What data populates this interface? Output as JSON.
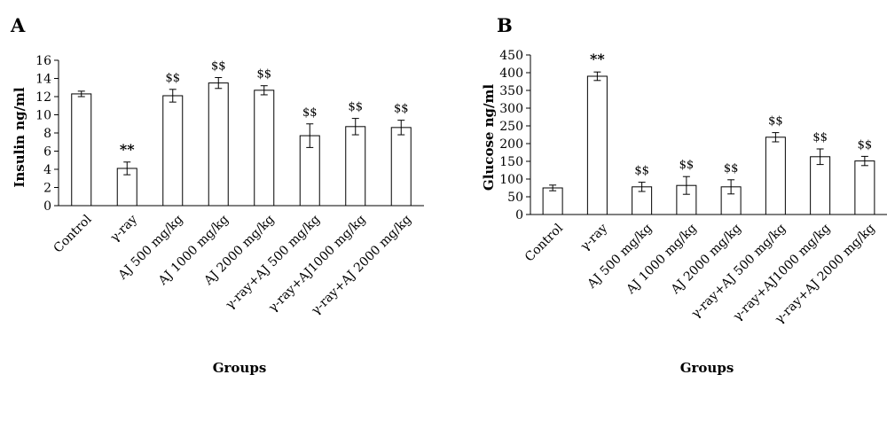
{
  "chart_data": [
    {
      "panel_label": "A",
      "type": "bar",
      "ylabel": "Insulin ng/ml",
      "xlabel": "Groups",
      "ylim": [
        0,
        16
      ],
      "yticks": [
        "0",
        "2",
        "4",
        "6",
        "8",
        "10",
        "12",
        "14",
        "16"
      ],
      "categories": [
        "Control",
        "γ-ray",
        "AJ 500 mg/kg",
        "AJ 1000 mg/kg",
        "AJ 2000 mg/kg",
        "γ-ray+AJ 500 mg/kg",
        "γ-ray+AJ1000 mg/kg",
        "γ-ray+AJ 2000 mg/kg"
      ],
      "values": [
        12.3,
        4.1,
        12.1,
        13.5,
        12.7,
        7.7,
        8.7,
        8.6
      ],
      "errors": [
        0.3,
        0.7,
        0.7,
        0.6,
        0.5,
        1.3,
        0.9,
        0.8
      ],
      "annotations": [
        "",
        "**",
        "$$",
        "$$",
        "$$",
        "$$",
        "$$",
        "$$"
      ]
    },
    {
      "panel_label": "B",
      "type": "bar",
      "ylabel": "Glucose ng/ml",
      "xlabel": "Groups",
      "ylim": [
        0,
        450
      ],
      "yticks": [
        "0",
        "50",
        "100",
        "150",
        "200",
        "250",
        "300",
        "350",
        "400",
        "450"
      ],
      "categories": [
        "Control",
        "γ-ray",
        "AJ 500 mg/kg",
        "AJ 1000 mg/kg",
        "AJ 2000 mg/kg",
        "γ-ray+AJ 500 mg/kg",
        "γ-ray+AJ1000 mg/kg",
        "γ-ray+AJ 2000 mg/kg"
      ],
      "values": [
        75,
        390,
        78,
        82,
        78,
        218,
        163,
        151
      ],
      "errors": [
        8,
        12,
        13,
        25,
        20,
        13,
        22,
        13
      ],
      "annotations": [
        "",
        "**",
        "$$",
        "$$",
        "$$",
        "$$",
        "$$",
        "$$"
      ]
    }
  ]
}
